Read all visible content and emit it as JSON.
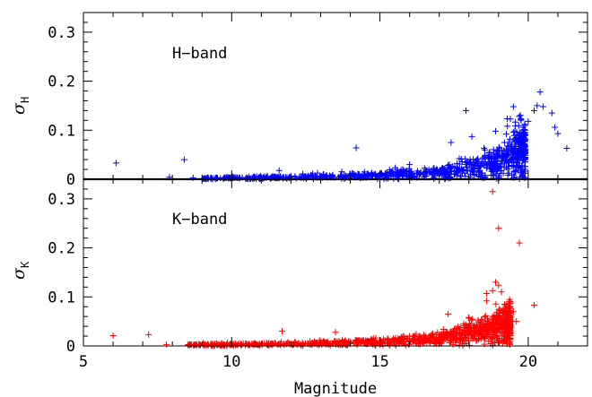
{
  "chart_data": [
    {
      "type": "scatter",
      "panel": "top",
      "band_label": "H−band",
      "ylabel": "σ",
      "ylabel_sub": "H",
      "xlim": [
        5,
        22
      ],
      "ylim": [
        0,
        0.34
      ],
      "yticks": [
        0,
        0.1,
        0.2,
        0.3
      ],
      "ytick_labels": [
        "0",
        "0.1",
        "0.2",
        "0.3"
      ],
      "marker": "+",
      "color": "#0000ff",
      "grid": false,
      "points": [
        [
          6.1,
          0.033
        ],
        [
          8.4,
          0.04
        ],
        [
          7.9,
          0.004
        ],
        [
          9.3,
          0.003
        ],
        [
          8.7,
          0.003
        ],
        [
          11.6,
          0.018
        ],
        [
          12.4,
          0.011
        ],
        [
          14.2,
          0.064
        ],
        [
          16.0,
          0.03
        ],
        [
          17.4,
          0.075
        ],
        [
          17.9,
          0.14
        ],
        [
          18.1,
          0.087
        ],
        [
          18.9,
          0.098
        ],
        [
          19.3,
          0.108
        ],
        [
          19.5,
          0.148
        ],
        [
          19.4,
          0.123
        ],
        [
          19.7,
          0.128
        ],
        [
          20.0,
          0.118
        ],
        [
          20.2,
          0.14
        ],
        [
          20.3,
          0.15
        ],
        [
          20.4,
          0.178
        ],
        [
          20.5,
          0.148
        ],
        [
          20.8,
          0.135
        ],
        [
          20.9,
          0.106
        ],
        [
          21.0,
          0.093
        ],
        [
          21.3,
          0.063
        ],
        [
          19.8,
          0.06
        ],
        [
          19.6,
          0.085
        ],
        [
          19.2,
          0.075
        ],
        [
          18.7,
          0.055
        ],
        [
          18.3,
          0.042
        ],
        [
          16.8,
          0.022
        ],
        [
          15.4,
          0.015
        ],
        [
          13.1,
          0.01
        ]
      ],
      "trend": [
        [
          9.0,
          0.002
        ],
        [
          12.0,
          0.004
        ],
        [
          15.0,
          0.008
        ],
        [
          16.5,
          0.012
        ],
        [
          17.5,
          0.018
        ],
        [
          18.3,
          0.026
        ],
        [
          18.9,
          0.036
        ],
        [
          19.4,
          0.048
        ],
        [
          19.8,
          0.06
        ]
      ],
      "trend_x_range": [
        9.0,
        19.9
      ],
      "trend_count": 900
    },
    {
      "type": "scatter",
      "panel": "bottom",
      "band_label": "K−band",
      "ylabel": "σ",
      "ylabel_sub": "K",
      "xlabel": "Magnitude",
      "xlim": [
        5,
        22
      ],
      "ylim": [
        0,
        0.34
      ],
      "xticks": [
        5,
        10,
        15,
        20
      ],
      "xtick_labels": [
        "5",
        "10",
        "15",
        "20"
      ],
      "yticks": [
        0,
        0.1,
        0.2,
        0.3
      ],
      "ytick_labels": [
        "0",
        "0.1",
        "0.2",
        "0.3"
      ],
      "marker": "+",
      "color": "#ff0000",
      "grid": false,
      "points": [
        [
          6.0,
          0.021
        ],
        [
          7.2,
          0.023
        ],
        [
          7.8,
          0.003
        ],
        [
          9.2,
          0.003
        ],
        [
          11.7,
          0.03
        ],
        [
          13.5,
          0.028
        ],
        [
          14.0,
          0.008
        ],
        [
          16.0,
          0.02
        ],
        [
          17.3,
          0.065
        ],
        [
          18.0,
          0.058
        ],
        [
          18.6,
          0.092
        ],
        [
          18.8,
          0.315
        ],
        [
          19.0,
          0.24
        ],
        [
          18.9,
          0.13
        ],
        [
          19.0,
          0.124
        ],
        [
          18.8,
          0.113
        ],
        [
          19.1,
          0.11
        ],
        [
          18.6,
          0.107
        ],
        [
          19.2,
          0.085
        ],
        [
          19.5,
          0.07
        ],
        [
          19.3,
          0.055
        ],
        [
          19.7,
          0.21
        ],
        [
          20.2,
          0.083
        ],
        [
          19.6,
          0.05
        ],
        [
          19.1,
          0.035
        ],
        [
          18.5,
          0.045
        ],
        [
          18.0,
          0.03
        ],
        [
          17.0,
          0.022
        ],
        [
          15.5,
          0.012
        ],
        [
          12.8,
          0.006
        ]
      ],
      "trend": [
        [
          8.5,
          0.002
        ],
        [
          12.0,
          0.004
        ],
        [
          15.0,
          0.008
        ],
        [
          16.5,
          0.013
        ],
        [
          17.5,
          0.02
        ],
        [
          18.2,
          0.028
        ],
        [
          18.7,
          0.036
        ],
        [
          19.1,
          0.042
        ],
        [
          19.4,
          0.046
        ]
      ],
      "trend_x_range": [
        8.5,
        19.4
      ],
      "trend_count": 1000
    }
  ]
}
